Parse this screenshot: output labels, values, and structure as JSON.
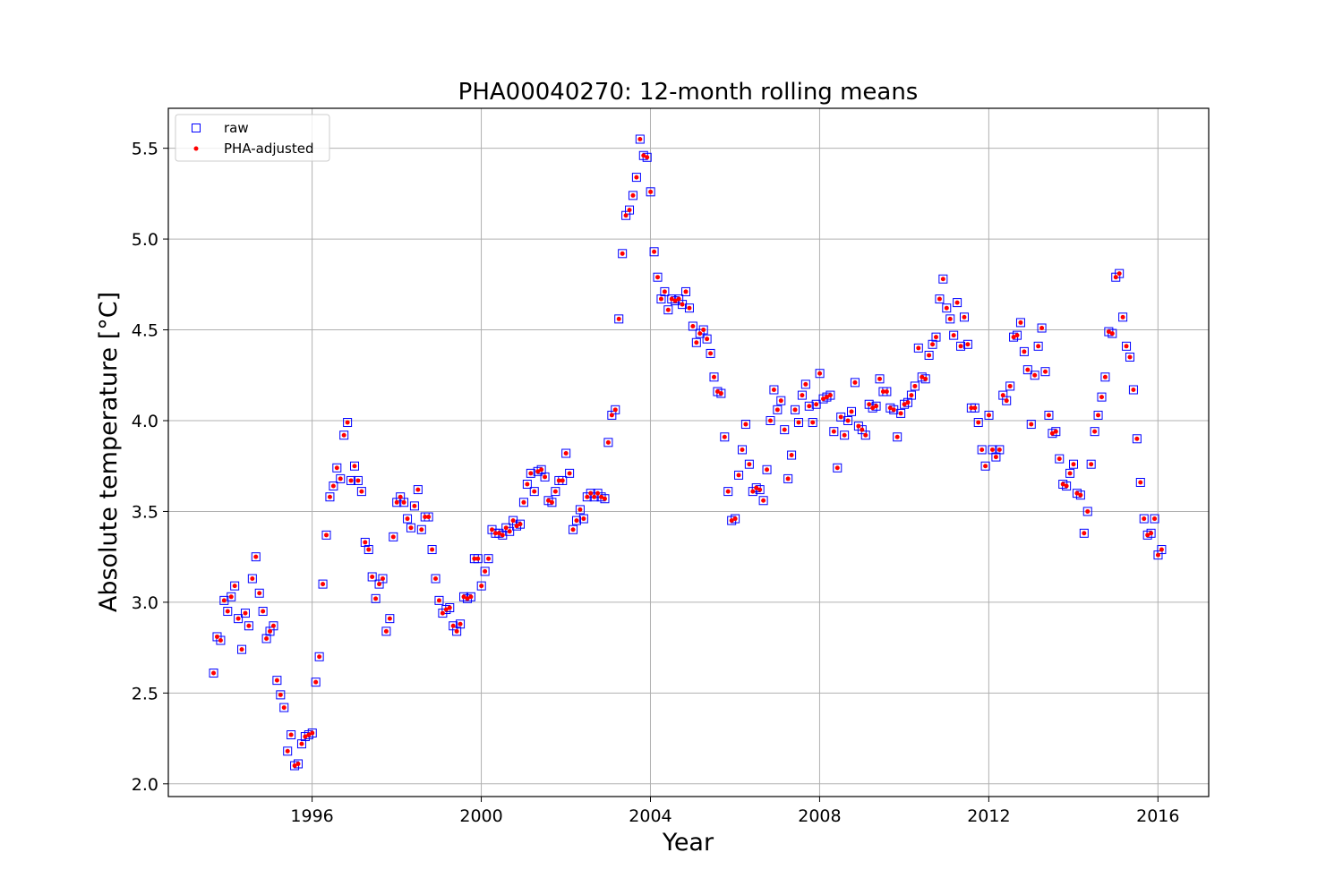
{
  "chart_data": {
    "type": "scatter",
    "title": "PHA00040270: 12-month rolling means",
    "xlabel": "Year",
    "ylabel": "Absolute temperature [°C]",
    "xlim": [
      1992.6,
      2017.2
    ],
    "ylim": [
      1.93,
      5.72
    ],
    "xticks": [
      1996,
      2000,
      2004,
      2008,
      2012,
      2016
    ],
    "yticks": [
      2.0,
      2.5,
      3.0,
      3.5,
      4.0,
      4.5,
      5.0,
      5.5
    ],
    "xtick_labels": [
      "1996",
      "2000",
      "2004",
      "2008",
      "2012",
      "2016"
    ],
    "ytick_labels": [
      "2.0",
      "2.5",
      "3.0",
      "3.5",
      "4.0",
      "4.5",
      "5.0",
      "5.5"
    ],
    "grid": true,
    "legend_position": "top-left",
    "x_start": 1993.67,
    "x_step": 0.0833333,
    "series": [
      {
        "name": "raw",
        "marker": "square-open",
        "color": "#0000ff",
        "values": [
          2.61,
          2.81,
          2.79,
          3.01,
          2.95,
          3.03,
          3.09,
          2.91,
          2.74,
          2.94,
          2.87,
          3.13,
          3.25,
          3.05,
          2.95,
          2.8,
          2.84,
          2.87,
          2.57,
          2.49,
          2.42,
          2.18,
          2.27,
          2.1,
          2.11,
          2.22,
          2.26,
          2.27,
          2.28,
          2.56,
          2.7,
          3.1,
          3.37,
          3.58,
          3.64,
          3.74,
          3.68,
          3.92,
          3.99,
          3.67,
          3.75,
          3.67,
          3.61,
          3.33,
          3.29,
          3.14,
          3.02,
          3.1,
          3.13,
          2.84,
          2.91,
          3.36,
          3.55,
          3.58,
          3.55,
          3.46,
          3.41,
          3.53,
          3.62,
          3.4,
          3.47,
          3.47,
          3.29,
          3.13,
          3.01,
          2.94,
          2.96,
          2.97,
          2.87,
          2.84,
          2.88,
          3.03,
          3.02,
          3.03,
          3.24,
          3.24,
          3.09,
          3.17,
          3.24,
          3.4,
          3.38,
          3.38,
          3.37,
          3.41,
          3.39,
          3.45,
          3.42,
          3.43,
          3.55,
          3.65,
          3.71,
          3.61,
          3.72,
          3.73,
          3.69,
          3.56,
          3.55,
          3.61,
          3.67,
          3.67,
          3.82,
          3.71,
          3.4,
          3.45,
          3.51,
          3.46,
          3.58,
          3.6,
          3.58,
          3.6,
          3.58,
          3.57,
          3.88,
          4.03,
          4.06,
          4.56,
          4.92,
          5.13,
          5.16,
          5.24,
          5.34,
          5.55,
          5.46,
          5.45,
          5.26,
          4.93,
          4.79,
          4.67,
          4.71,
          4.61,
          4.67,
          4.66,
          4.67,
          4.64,
          4.71,
          4.62,
          4.52,
          4.43,
          4.48,
          4.5,
          4.45,
          4.37,
          4.24,
          4.16,
          4.15,
          3.91,
          3.61,
          3.45,
          3.46,
          3.7,
          3.84,
          3.98,
          3.76,
          3.61,
          3.63,
          3.62,
          3.56,
          3.73,
          4.0,
          4.17,
          4.06,
          4.11,
          3.95,
          3.68,
          3.81,
          4.06,
          3.99,
          4.14,
          4.2,
          4.08,
          3.99,
          4.09,
          4.26,
          4.12,
          4.13,
          4.14,
          3.94,
          3.74,
          4.02,
          3.92,
          4.0,
          4.05,
          4.21,
          3.97,
          3.95,
          3.92,
          4.09,
          4.07,
          4.08,
          4.23,
          4.16,
          4.16,
          4.07,
          4.06,
          3.91,
          4.04,
          4.09,
          4.1,
          4.14,
          4.19,
          4.4,
          4.24,
          4.23,
          4.36,
          4.42,
          4.46,
          4.67,
          4.78,
          4.62,
          4.56,
          4.47,
          4.65,
          4.41,
          4.57,
          4.42,
          4.07,
          4.07,
          3.99,
          3.84,
          3.75,
          4.03,
          3.84,
          3.8,
          3.84,
          4.14,
          4.11,
          4.19,
          4.46,
          4.47,
          4.54,
          4.38,
          4.28,
          3.98,
          4.25,
          4.41,
          4.51,
          4.27,
          4.03,
          3.93,
          3.94,
          3.79,
          3.65,
          3.64,
          3.71,
          3.76,
          3.6,
          3.59,
          3.38,
          3.5,
          3.76,
          3.94,
          4.03,
          4.13,
          4.24,
          4.49,
          4.48,
          4.79,
          4.81,
          4.57,
          4.41,
          4.35,
          4.17,
          3.9,
          3.66,
          3.46,
          3.37,
          3.38,
          3.46,
          3.26,
          3.29
        ]
      },
      {
        "name": "PHA-adjusted",
        "marker": "dot",
        "color": "#ff0000",
        "values": [
          2.61,
          2.81,
          2.79,
          3.01,
          2.95,
          3.03,
          3.09,
          2.91,
          2.74,
          2.94,
          2.87,
          3.13,
          3.25,
          3.05,
          2.95,
          2.8,
          2.84,
          2.87,
          2.57,
          2.49,
          2.42,
          2.18,
          2.27,
          2.1,
          2.11,
          2.22,
          2.26,
          2.27,
          2.28,
          2.56,
          2.7,
          3.1,
          3.37,
          3.58,
          3.64,
          3.74,
          3.68,
          3.92,
          3.99,
          3.67,
          3.75,
          3.67,
          3.61,
          3.33,
          3.29,
          3.14,
          3.02,
          3.1,
          3.13,
          2.84,
          2.91,
          3.36,
          3.55,
          3.58,
          3.55,
          3.46,
          3.41,
          3.53,
          3.62,
          3.4,
          3.47,
          3.47,
          3.29,
          3.13,
          3.01,
          2.94,
          2.96,
          2.97,
          2.87,
          2.84,
          2.88,
          3.03,
          3.02,
          3.03,
          3.24,
          3.24,
          3.09,
          3.17,
          3.24,
          3.4,
          3.38,
          3.38,
          3.37,
          3.41,
          3.39,
          3.45,
          3.42,
          3.43,
          3.55,
          3.65,
          3.71,
          3.61,
          3.72,
          3.73,
          3.69,
          3.56,
          3.55,
          3.61,
          3.67,
          3.67,
          3.82,
          3.71,
          3.4,
          3.45,
          3.51,
          3.46,
          3.58,
          3.6,
          3.58,
          3.6,
          3.58,
          3.57,
          3.88,
          4.03,
          4.06,
          4.56,
          4.92,
          5.13,
          5.16,
          5.24,
          5.34,
          5.55,
          5.46,
          5.45,
          5.26,
          4.93,
          4.79,
          4.67,
          4.71,
          4.61,
          4.67,
          4.66,
          4.67,
          4.64,
          4.71,
          4.62,
          4.52,
          4.43,
          4.48,
          4.5,
          4.45,
          4.37,
          4.24,
          4.16,
          4.15,
          3.91,
          3.61,
          3.45,
          3.46,
          3.7,
          3.84,
          3.98,
          3.76,
          3.61,
          3.63,
          3.62,
          3.56,
          3.73,
          4.0,
          4.17,
          4.06,
          4.11,
          3.95,
          3.68,
          3.81,
          4.06,
          3.99,
          4.14,
          4.2,
          4.08,
          3.99,
          4.09,
          4.26,
          4.12,
          4.13,
          4.14,
          3.94,
          3.74,
          4.02,
          3.92,
          4.0,
          4.05,
          4.21,
          3.97,
          3.95,
          3.92,
          4.09,
          4.07,
          4.08,
          4.23,
          4.16,
          4.16,
          4.07,
          4.06,
          3.91,
          4.04,
          4.09,
          4.1,
          4.14,
          4.19,
          4.4,
          4.24,
          4.23,
          4.36,
          4.42,
          4.46,
          4.67,
          4.78,
          4.62,
          4.56,
          4.47,
          4.65,
          4.41,
          4.57,
          4.42,
          4.07,
          4.07,
          3.99,
          3.84,
          3.75,
          4.03,
          3.84,
          3.8,
          3.84,
          4.14,
          4.11,
          4.19,
          4.46,
          4.47,
          4.54,
          4.38,
          4.28,
          3.98,
          4.25,
          4.41,
          4.51,
          4.27,
          4.03,
          3.93,
          3.94,
          3.79,
          3.65,
          3.64,
          3.71,
          3.76,
          3.6,
          3.59,
          3.38,
          3.5,
          3.76,
          3.94,
          4.03,
          4.13,
          4.24,
          4.49,
          4.48,
          4.79,
          4.81,
          4.57,
          4.41,
          4.35,
          4.17,
          3.9,
          3.66,
          3.46,
          3.37,
          3.38,
          3.46,
          3.26,
          3.29
        ]
      }
    ]
  }
}
